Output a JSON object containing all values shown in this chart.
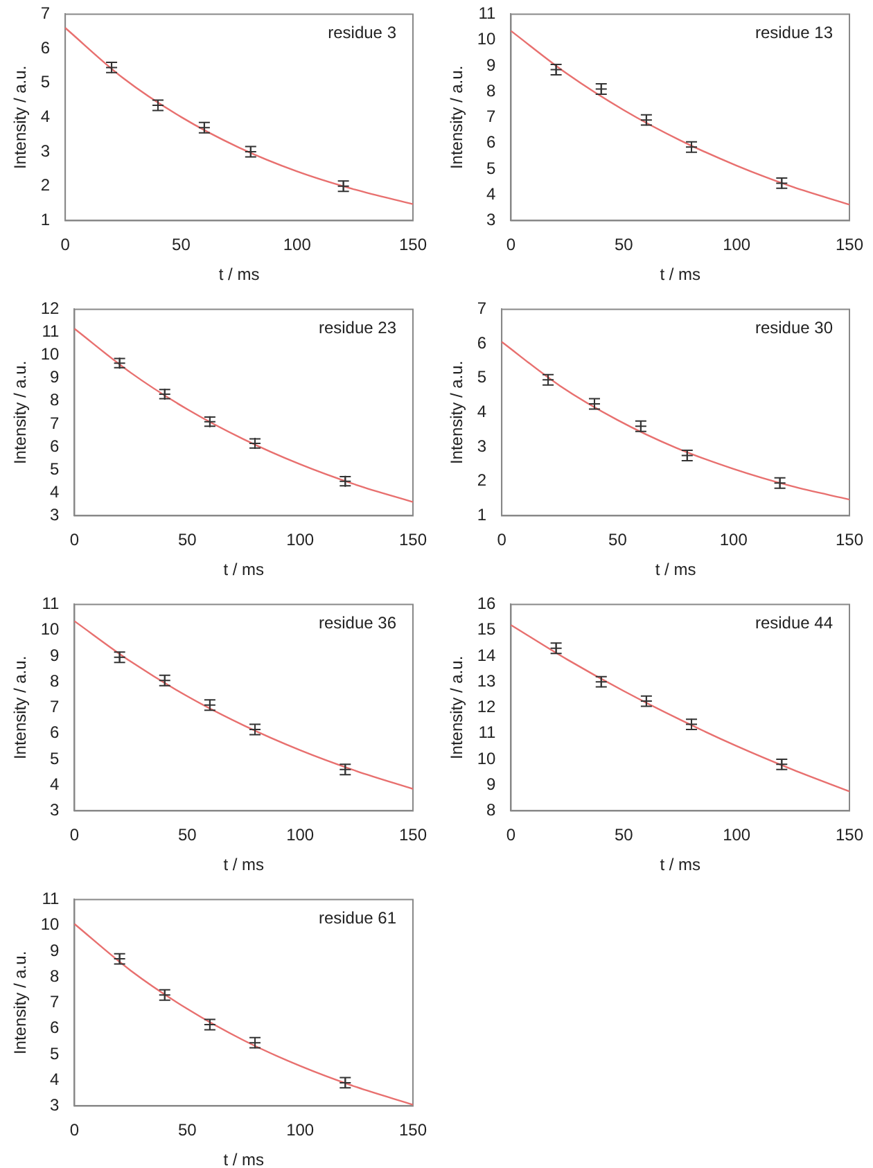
{
  "chart_data": [
    {
      "type": "scatter",
      "xlabel": "t / ms",
      "ylabel": "Intensity / a.u.",
      "annotations": [
        "residue 3"
      ],
      "xlim": [
        0,
        150
      ],
      "xticks": [
        0,
        50,
        100,
        150
      ],
      "ylim": [
        1,
        7
      ],
      "yticks": [
        1,
        2,
        3,
        4,
        5,
        6,
        7
      ],
      "grid": false,
      "x": [
        20,
        40,
        60,
        80,
        120
      ],
      "series": [
        {
          "marker": "cross",
          "color": "#333333",
          "values": [
            5.45,
            4.35,
            3.7,
            3.0,
            2.0
          ],
          "errors": [
            0.15,
            0.15,
            0.15,
            0.15,
            0.15
          ]
        },
        {
          "type": "line",
          "marker": "none",
          "color": "#e8706f",
          "x": [
            0,
            25,
            50,
            75,
            100,
            125,
            150
          ],
          "values": [
            6.6,
            5.14,
            4.01,
            3.12,
            2.43,
            1.9,
            1.48
          ]
        }
      ]
    },
    {
      "type": "scatter",
      "xlabel": "t / ms",
      "ylabel": "Intensity / a.u.",
      "annotations": [
        "residue 13"
      ],
      "xlim": [
        0,
        150
      ],
      "xticks": [
        0,
        50,
        100,
        150
      ],
      "ylim": [
        3,
        11
      ],
      "yticks": [
        3,
        4,
        5,
        6,
        7,
        8,
        9,
        10,
        11
      ],
      "grid": false,
      "x": [
        20,
        40,
        60,
        80,
        120
      ],
      "series": [
        {
          "marker": "cross",
          "color": "#333333",
          "values": [
            8.85,
            8.1,
            6.9,
            5.85,
            4.45
          ],
          "errors": [
            0.2,
            0.2,
            0.2,
            0.2,
            0.2
          ]
        },
        {
          "type": "line",
          "marker": "none",
          "color": "#e8706f",
          "x": [
            0,
            25,
            50,
            75,
            100,
            125,
            150
          ],
          "values": [
            10.35,
            8.68,
            7.28,
            6.11,
            5.13,
            4.3,
            3.62
          ]
        }
      ]
    },
    {
      "type": "scatter",
      "xlabel": "t / ms",
      "ylabel": "Intensity / a.u.",
      "annotations": [
        "residue 23"
      ],
      "xlim": [
        0,
        150
      ],
      "xticks": [
        0,
        50,
        100,
        150
      ],
      "ylim": [
        3,
        12
      ],
      "yticks": [
        3,
        4,
        5,
        6,
        7,
        8,
        9,
        10,
        11,
        12
      ],
      "grid": false,
      "x": [
        20,
        40,
        60,
        80,
        120
      ],
      "series": [
        {
          "marker": "cross",
          "color": "#333333",
          "values": [
            9.65,
            8.3,
            7.1,
            6.15,
            4.5
          ],
          "errors": [
            0.2,
            0.2,
            0.2,
            0.2,
            0.2
          ]
        },
        {
          "type": "line",
          "marker": "none",
          "color": "#e8706f",
          "x": [
            0,
            25,
            50,
            75,
            100,
            125,
            150
          ],
          "values": [
            11.15,
            9.23,
            7.64,
            6.33,
            5.24,
            4.34,
            3.6
          ]
        }
      ]
    },
    {
      "type": "scatter",
      "xlabel": "t / ms",
      "ylabel": "Intensity / a.u.",
      "annotations": [
        "residue 30"
      ],
      "xlim": [
        0,
        150
      ],
      "xticks": [
        0,
        50,
        100,
        150
      ],
      "ylim": [
        1,
        7
      ],
      "yticks": [
        1,
        2,
        3,
        4,
        5,
        6,
        7
      ],
      "grid": false,
      "x": [
        20,
        40,
        60,
        80,
        120
      ],
      "series": [
        {
          "marker": "cross",
          "color": "#333333",
          "values": [
            4.95,
            4.25,
            3.6,
            2.75,
            1.95
          ],
          "errors": [
            0.15,
            0.15,
            0.15,
            0.15,
            0.15
          ]
        },
        {
          "type": "line",
          "marker": "none",
          "color": "#e8706f",
          "x": [
            0,
            25,
            50,
            75,
            100,
            125,
            150
          ],
          "values": [
            6.05,
            4.78,
            3.78,
            2.98,
            2.36,
            1.86,
            1.47
          ]
        }
      ]
    },
    {
      "type": "scatter",
      "xlabel": "t / ms",
      "ylabel": "Intensity / a.u.",
      "annotations": [
        "residue 36"
      ],
      "xlim": [
        0,
        150
      ],
      "xticks": [
        0,
        50,
        100,
        150
      ],
      "ylim": [
        3,
        11
      ],
      "yticks": [
        3,
        4,
        5,
        6,
        7,
        8,
        9,
        10,
        11
      ],
      "grid": false,
      "x": [
        20,
        40,
        60,
        80,
        120
      ],
      "series": [
        {
          "marker": "cross",
          "color": "#333333",
          "values": [
            8.95,
            8.05,
            7.1,
            6.15,
            4.6
          ],
          "errors": [
            0.2,
            0.2,
            0.2,
            0.2,
            0.2
          ]
        },
        {
          "type": "line",
          "marker": "none",
          "color": "#e8706f",
          "x": [
            0,
            25,
            50,
            75,
            100,
            125,
            150
          ],
          "values": [
            10.35,
            8.78,
            7.44,
            6.31,
            5.35,
            4.54,
            3.85
          ]
        }
      ]
    },
    {
      "type": "scatter",
      "xlabel": "t / ms",
      "ylabel": "Intensity / a.u.",
      "annotations": [
        "residue 44"
      ],
      "xlim": [
        0,
        150
      ],
      "xticks": [
        0,
        50,
        100,
        150
      ],
      "ylim": [
        8,
        16
      ],
      "yticks": [
        8,
        9,
        10,
        11,
        12,
        13,
        14,
        15,
        16
      ],
      "grid": false,
      "x": [
        20,
        40,
        60,
        80,
        120
      ],
      "series": [
        {
          "marker": "cross",
          "color": "#333333",
          "values": [
            14.3,
            13.0,
            12.25,
            11.35,
            9.8
          ],
          "errors": [
            0.2,
            0.2,
            0.2,
            0.2,
            0.2
          ]
        },
        {
          "type": "line",
          "marker": "none",
          "color": "#e8706f",
          "x": [
            0,
            25,
            50,
            75,
            100,
            125,
            150
          ],
          "values": [
            15.2,
            13.86,
            12.64,
            11.53,
            10.51,
            9.59,
            8.75
          ]
        }
      ]
    },
    {
      "type": "scatter",
      "xlabel": "t / ms",
      "ylabel": "Intensity / a.u.",
      "annotations": [
        "residue 61"
      ],
      "xlim": [
        0,
        150
      ],
      "xticks": [
        0,
        50,
        100,
        150
      ],
      "ylim": [
        3,
        11
      ],
      "yticks": [
        3,
        4,
        5,
        6,
        7,
        8,
        9,
        10,
        11
      ],
      "grid": false,
      "x": [
        20,
        40,
        60,
        80,
        120
      ],
      "series": [
        {
          "marker": "cross",
          "color": "#333333",
          "values": [
            8.7,
            7.3,
            6.15,
            5.45,
            3.9
          ],
          "errors": [
            0.2,
            0.2,
            0.2,
            0.2,
            0.2
          ]
        },
        {
          "type": "line",
          "marker": "none",
          "color": "#e8706f",
          "x": [
            0,
            25,
            50,
            75,
            100,
            125,
            150
          ],
          "values": [
            10.05,
            8.24,
            6.76,
            5.54,
            4.55,
            3.73,
            3.05
          ]
        }
      ]
    }
  ]
}
